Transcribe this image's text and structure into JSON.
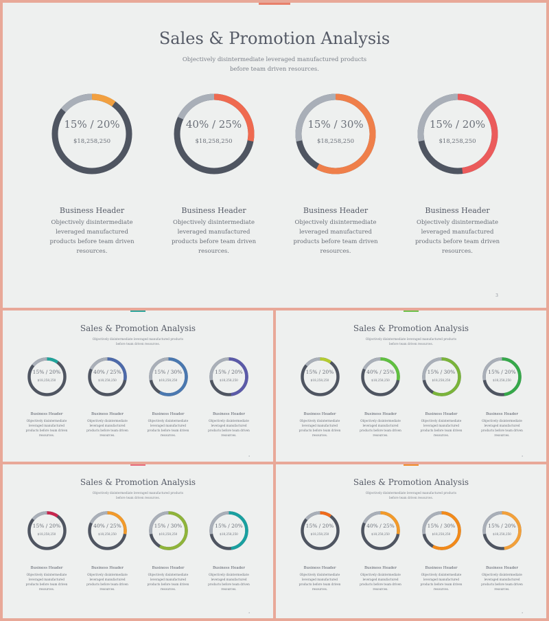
{
  "title": "Sales & Promotion Analysis",
  "subtitle": "Objectively disintermediate leveraged manufactured products before team driven resources.",
  "page_number": "3",
  "track_color": "#a9afb8",
  "base_color": "#4f5561",
  "donuts": [
    {
      "label": "15% / 20%",
      "amount": "$18,258,250",
      "value": 15,
      "value2": 20
    },
    {
      "label": "40% / 25%",
      "amount": "$18,258,250",
      "value": 40,
      "value2": 25
    },
    {
      "label": "15% / 30%",
      "amount": "$18,258,250",
      "value": 15,
      "value2": 30
    },
    {
      "label": "15% / 20%",
      "amount": "$18,258,250",
      "value": 15,
      "value2": 20
    }
  ],
  "columns": [
    {
      "header": "Business Header",
      "text": "Objectively disintermediate leveraged manufactured products before team driven resources."
    },
    {
      "header": "Business Header",
      "text": "Objectively disintermediate leveraged manufactured products before team driven resources."
    },
    {
      "header": "Business Header",
      "text": "Objectively disintermediate leveraged manufactured products before team driven resources."
    },
    {
      "header": "Business Header",
      "text": "Objectively disintermediate leveraged manufactured products before team driven resources."
    }
  ],
  "slides": [
    {
      "name": "slide-main",
      "accent": "#e8806a",
      "colors": [
        "#f2a040",
        "#ef6a50",
        "#ef7f4a",
        "#eb5b5b"
      ]
    },
    {
      "name": "slide-blue",
      "accent": "#2aa39a",
      "colors": [
        "#1fa39a",
        "#4d6aaa",
        "#4a78b0",
        "#5b5aa8"
      ]
    },
    {
      "name": "slide-green",
      "accent": "#6cc04a",
      "colors": [
        "#b4cc30",
        "#60c040",
        "#7ab43a",
        "#36a84a"
      ]
    },
    {
      "name": "slide-multi",
      "accent": "#e86a7a",
      "colors": [
        "#c8264e",
        "#f29a2a",
        "#8fb43a",
        "#1aa0a0"
      ]
    },
    {
      "name": "slide-orange",
      "accent": "#f08a2a",
      "colors": [
        "#ef6a1a",
        "#f29a2a",
        "#f28a1a",
        "#f2a03a"
      ]
    }
  ]
}
